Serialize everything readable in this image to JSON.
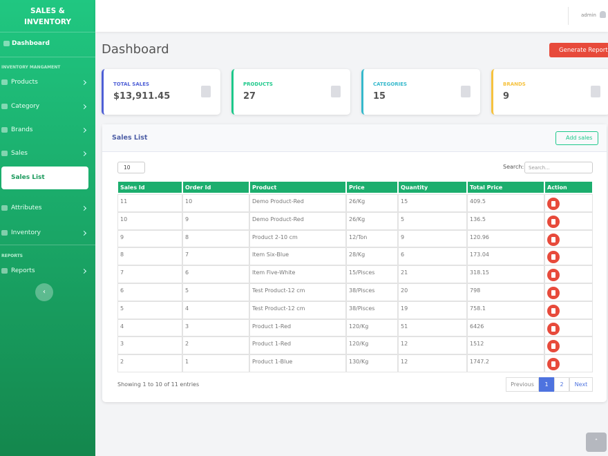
{
  "sidebar": {
    "brand": "SALES & INVENTORY",
    "dashboard": "Dashboard",
    "section_inventory": "INVENTORY MANGAMENT",
    "menu": [
      "Products",
      "Category",
      "Brands",
      "Sales"
    ],
    "submenu_active": "Sales List",
    "menu_more": [
      "Attributes",
      "Inventory"
    ],
    "section_reports": "REPORTS",
    "reports": "Reports"
  },
  "topbar": {
    "user": "admin"
  },
  "header": {
    "title": "Dashboard",
    "button": "Generate Report"
  },
  "cards": [
    {
      "label": "TOTAL SALES",
      "value": "$13,911.45"
    },
    {
      "label": "PRODUCTS",
      "value": 27
    },
    {
      "label": "CATEGORIES",
      "value": 15
    },
    {
      "label": "BRANDS",
      "value": 9
    }
  ],
  "panel": {
    "title": "Sales List",
    "add_button": "Add sales",
    "page_length": 10,
    "search_label": "Search:",
    "search_placeholder": "Search...",
    "footer": "Showing 1 to 10 of 11 entries",
    "pagination": [
      "Previous",
      "1",
      "2",
      "Next"
    ]
  },
  "table": {
    "columns": [
      "Sales Id",
      "Order Id",
      "Product",
      "Price",
      "Quantity",
      "Total Price",
      "Action"
    ],
    "rows": [
      [
        11,
        10,
        "Demo Product-Red",
        "26/Kg",
        15,
        409.5
      ],
      [
        10,
        9,
        "Demo Product-Red",
        "26/Kg",
        5,
        136.5
      ],
      [
        9,
        8,
        "Product 2-10 cm",
        "12/Ton",
        9,
        120.96
      ],
      [
        8,
        7,
        "Item Six-Blue",
        "28/Kg",
        6,
        173.04
      ],
      [
        7,
        6,
        "Item Five-White",
        "15/Pisces",
        21,
        318.15
      ],
      [
        6,
        5,
        "Test Product-12 cm",
        "38/Pisces",
        20,
        798
      ],
      [
        5,
        4,
        "Test Product-12 cm",
        "38/Pisces",
        19,
        758.1
      ],
      [
        4,
        3,
        "Product 1-Red",
        "120/Kg",
        51,
        6426
      ],
      [
        3,
        2,
        "Product 1-Red",
        "120/Kg",
        12,
        1512
      ],
      [
        2,
        1,
        "Product 1-Blue",
        "130/Kg",
        12,
        1747.2
      ]
    ]
  }
}
